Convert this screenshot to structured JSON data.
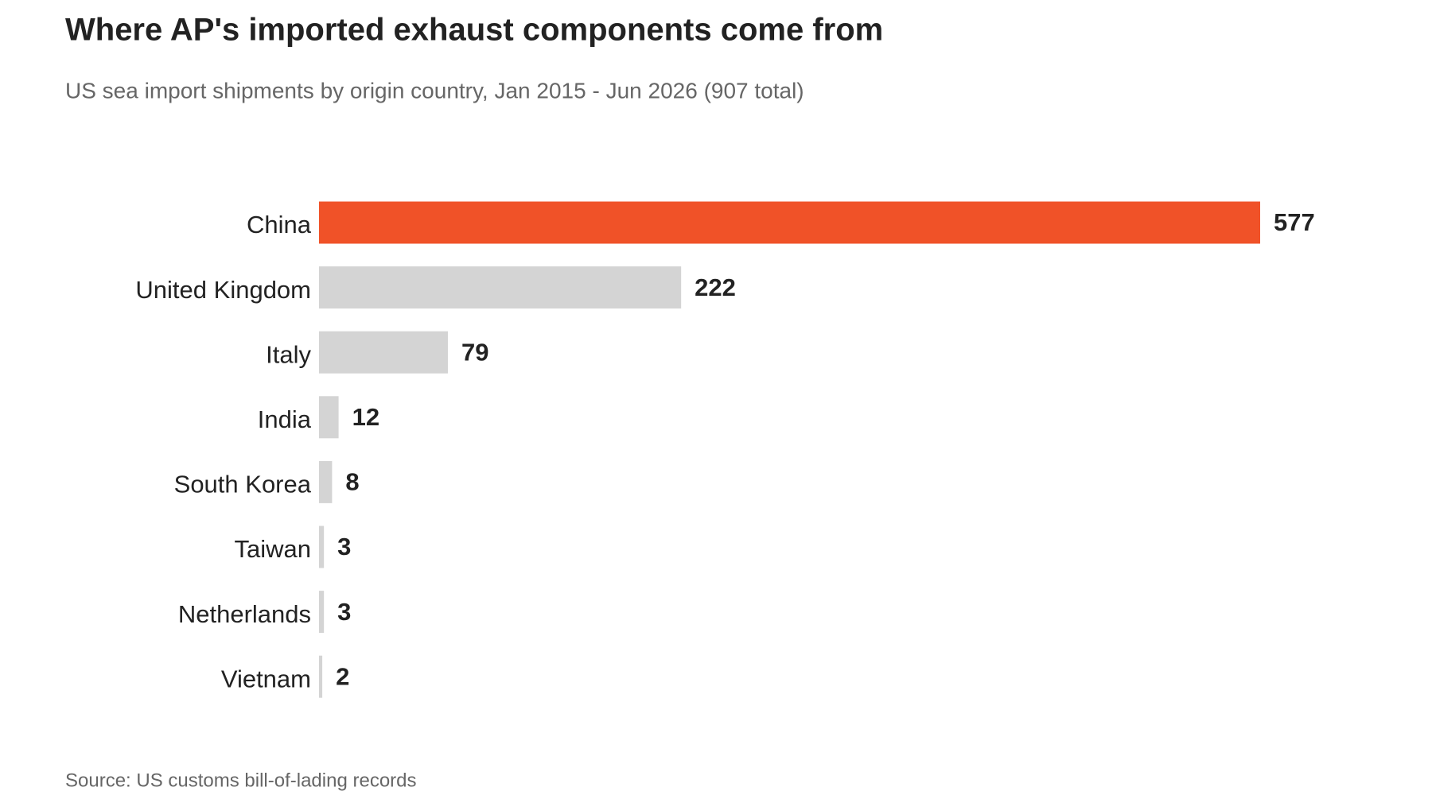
{
  "chart_data": {
    "type": "hbar",
    "title": "Where AP's imported exhaust components come from",
    "subtitle": "US sea import shipments by origin country, Jan 2015 - Jun 2026 (907 total)",
    "source": "Source: US customs bill-of-lading records",
    "categories": [
      "China",
      "United Kingdom",
      "Italy",
      "India",
      "South Korea",
      "Taiwan",
      "Netherlands",
      "Vietnam"
    ],
    "values": [
      577,
      222,
      79,
      12,
      8,
      3,
      3,
      2
    ],
    "colors": [
      "#f05228",
      "#d4d4d4",
      "#d4d4d4",
      "#d4d4d4",
      "#d4d4d4",
      "#d4d4d4",
      "#d4d4d4",
      "#d4d4d4"
    ]
  }
}
